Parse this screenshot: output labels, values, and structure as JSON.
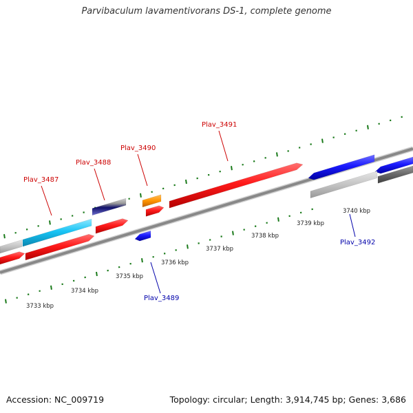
{
  "title": "Parvibaculum lavamentivorans DS-1, complete genome",
  "footer": {
    "accession": "Accession: NC_009719",
    "summary": "Topology: circular; Length: 3,914,745 bp; Genes: 3,686"
  },
  "colors": {
    "forward_gene": "#ff1a1a",
    "reverse_gene": "#1a1aff",
    "label_forward": "#cc0000",
    "label_reverse": "#0000aa",
    "tick": "#1a7a1a",
    "backbone": "#888888"
  },
  "scale": [
    {
      "label": "3733 kbp",
      "kbp": 3733
    },
    {
      "label": "3734 kbp",
      "kbp": 3734
    },
    {
      "label": "3735 kbp",
      "kbp": 3735
    },
    {
      "label": "3736 kbp",
      "kbp": 3736
    },
    {
      "label": "3737 kbp",
      "kbp": 3737
    },
    {
      "label": "3738 kbp",
      "kbp": 3738
    },
    {
      "label": "3739 kbp",
      "kbp": 3739
    },
    {
      "label": "3740 kbp",
      "kbp": 3740
    }
  ],
  "gene_labels": [
    {
      "name": "Plav_3487",
      "strand": "forward"
    },
    {
      "name": "Plav_3488",
      "strand": "forward"
    },
    {
      "name": "Plav_3490",
      "strand": "forward"
    },
    {
      "name": "Plav_3491",
      "strand": "forward"
    },
    {
      "name": "Plav_3489",
      "strand": "reverse"
    },
    {
      "name": "Plav_3492",
      "strand": "reverse"
    }
  ]
}
